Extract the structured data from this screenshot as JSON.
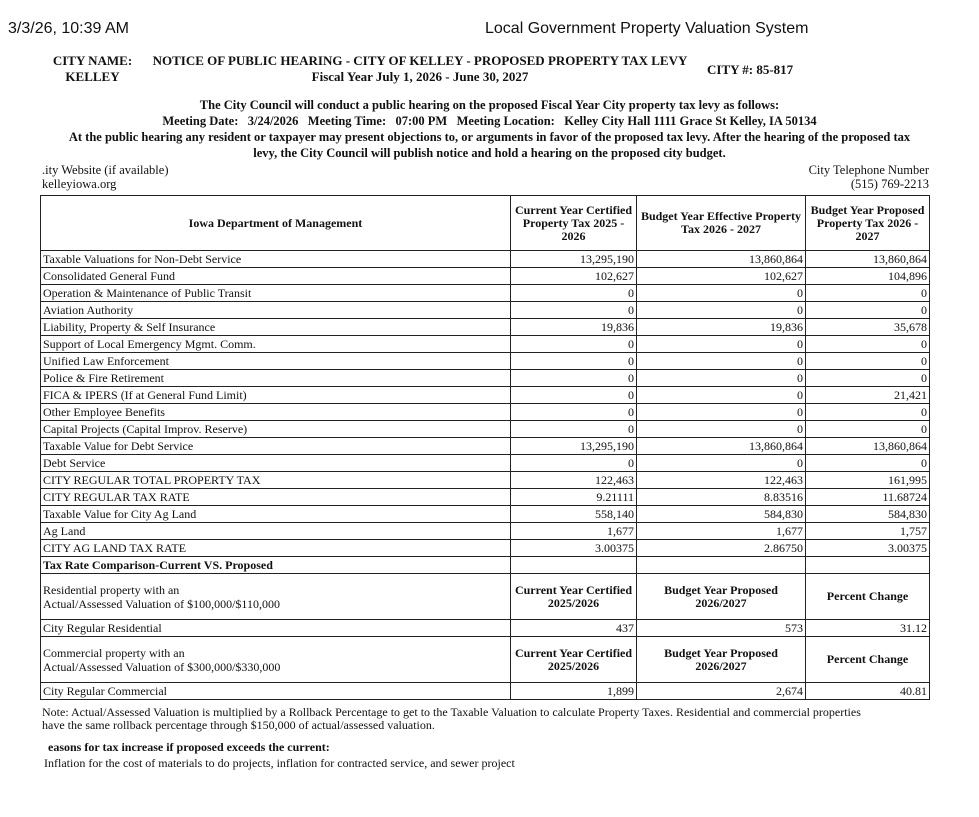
{
  "browser": {
    "timestamp": "3/3/26, 10:39 AM",
    "page_title": "Local Government Property Valuation System"
  },
  "notice": {
    "city_name_label": "CITY NAME:",
    "city_name": "KELLEY",
    "title": "NOTICE OF PUBLIC HEARING - CITY OF KELLEY - PROPOSED PROPERTY TAX LEVY",
    "fiscal_year": "Fiscal Year July 1, 2026 - June 30, 2027",
    "city_number": "CITY #: 85-817",
    "intro": "The City Council will conduct a public hearing on the proposed Fiscal Year City property tax levy as follows:",
    "meeting": "Meeting Date:   3/24/2026   Meeting Time:   07:00 PM   Meeting Location:   Kelley City Hall 1111 Grace St Kelley, IA 50134",
    "hearing_text_1": "At the public hearing any resident or taxpayer may present objections to, or arguments in favor of the proposed tax levy. After the hearing of the proposed tax",
    "hearing_text_2": "levy, the City Council will publish notice and hold a hearing on the proposed city budget.",
    "website_label": ".ity Website (if available)",
    "website": "kelleyiowa.org",
    "phone_label": "City Telephone Number",
    "phone": "(515) 769-2213"
  },
  "table": {
    "headers": [
      "Iowa Department of Management",
      "Current Year Certified Property Tax 2025 - 2026",
      "Budget Year Effective Property Tax 2026 - 2027",
      "Budget Year Proposed Property Tax 2026 - 2027"
    ],
    "rows": [
      [
        "Taxable Valuations for Non-Debt Service",
        "13,295,190",
        "13,860,864",
        "13,860,864"
      ],
      [
        "Consolidated General Fund",
        "102,627",
        "102,627",
        "104,896"
      ],
      [
        "Operation & Maintenance of Public Transit",
        "0",
        "0",
        "0"
      ],
      [
        "Aviation Authority",
        "0",
        "0",
        "0"
      ],
      [
        "Liability, Property & Self Insurance",
        "19,836",
        "19,836",
        "35,678"
      ],
      [
        "Support of Local Emergency Mgmt. Comm.",
        "0",
        "0",
        "0"
      ],
      [
        "Unified Law Enforcement",
        "0",
        "0",
        "0"
      ],
      [
        "Police & Fire Retirement",
        "0",
        "0",
        "0"
      ],
      [
        "FICA & IPERS (If at General Fund Limit)",
        "0",
        "0",
        "21,421"
      ],
      [
        "Other Employee Benefits",
        "0",
        "0",
        "0"
      ],
      [
        "Capital Projects (Capital Improv. Reserve)",
        "0",
        "0",
        "0"
      ],
      [
        "Taxable Value for Debt Service",
        "13,295,190",
        "13,860,864",
        "13,860,864"
      ],
      [
        "Debt Service",
        "0",
        "0",
        "0"
      ],
      [
        "CITY REGULAR TOTAL PROPERTY TAX",
        "122,463",
        "122,463",
        "161,995"
      ],
      [
        "CITY REGULAR TAX RATE",
        "9.21111",
        "8.83516",
        "11.68724"
      ],
      [
        "Taxable Value for City Ag Land",
        "558,140",
        "584,830",
        "584,830"
      ],
      [
        "Ag Land",
        "1,677",
        "1,677",
        "1,757"
      ],
      [
        "CITY AG LAND TAX RATE",
        "3.00375",
        "2.86750",
        "3.00375"
      ]
    ],
    "comparison_title": "Tax Rate Comparison-Current VS. Proposed",
    "comparison": [
      {
        "desc": "Residential property with an\nActual/Assessed Valuation of $100,000/$110,000",
        "h1": "Current Year Certified 2025/2026",
        "h2": "Budget Year Proposed 2026/2027",
        "h3": "Percent Change",
        "row": [
          "City Regular Residential",
          "437",
          "573",
          "31.12"
        ]
      },
      {
        "desc": "Commercial property with an\nActual/Assessed Valuation of $300,000/$330,000",
        "h1": "Current Year Certified 2025/2026",
        "h2": "Budget Year Proposed 2026/2027",
        "h3": "Percent Change",
        "row": [
          "City Regular Commercial",
          "1,899",
          "2,674",
          "40.81"
        ]
      }
    ]
  },
  "note_1": "Note: Actual/Assessed Valuation is multiplied by a Rollback Percentage to get to the Taxable Valuation to calculate Property Taxes. Residential and commercial properties",
  "note_2": "have the same rollback percentage through $150,000 of actual/assessed valuation.",
  "reasons_label": "easons for tax increase if proposed exceeds the current:",
  "reasons": "Inflation for the cost of materials to do projects, inflation for contracted service, and sewer project"
}
